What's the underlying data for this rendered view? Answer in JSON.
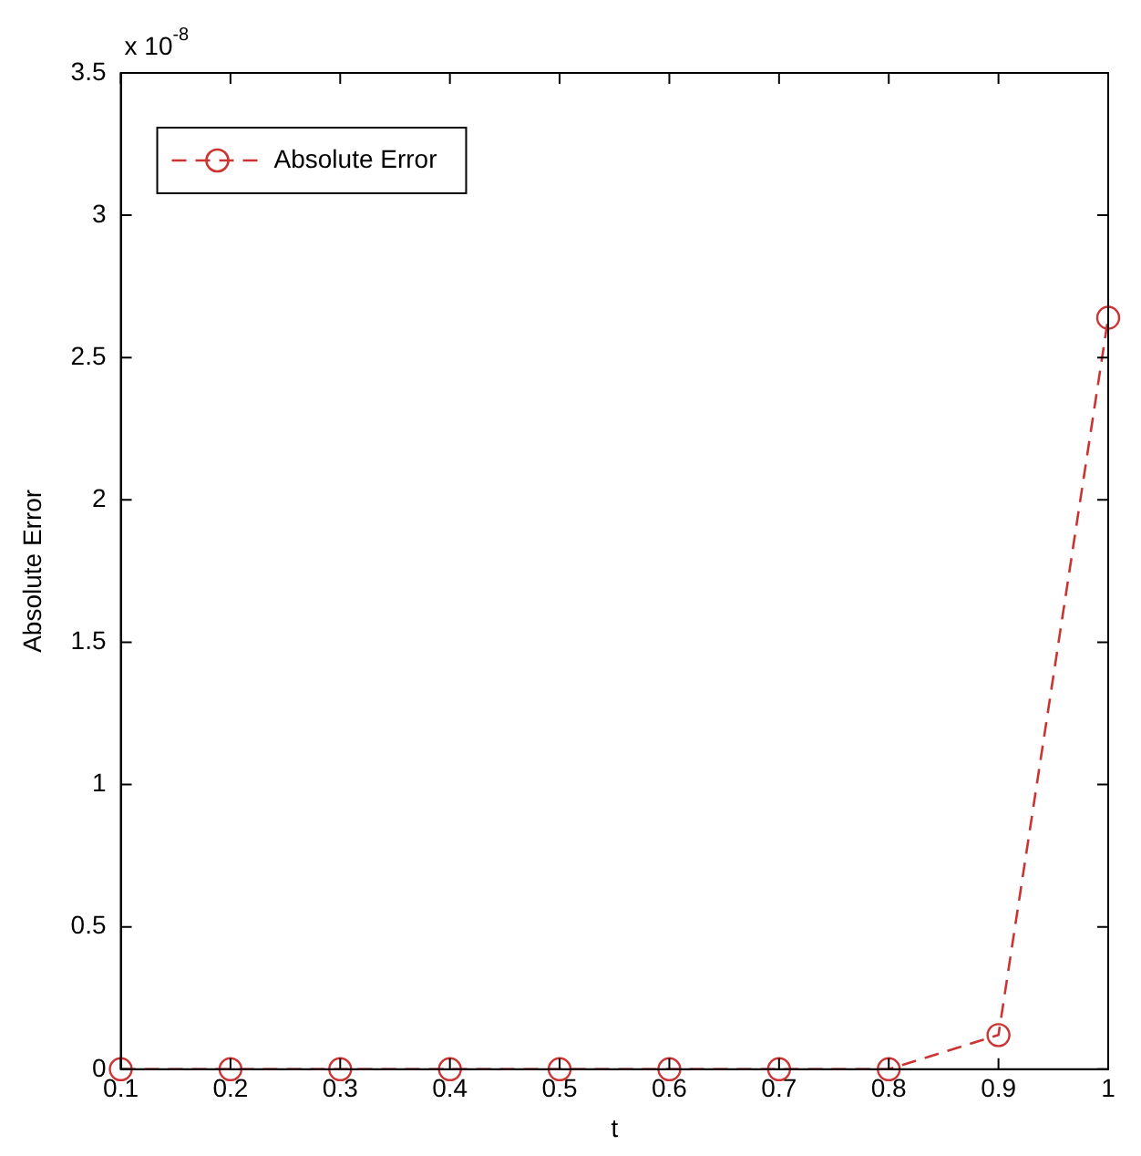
{
  "chart_data": {
    "type": "line",
    "xlabel": "t",
    "ylabel": "Absolute Error",
    "annotations": [
      "x 10$^{-8}$"
    ],
    "x": [
      0.1,
      0.2,
      0.3,
      0.4,
      0.5,
      0.6,
      0.7,
      0.8,
      0.9,
      1.0
    ],
    "series": [
      {
        "name": "Absolute Error",
        "color": "#cc3333",
        "values": [
          0,
          0,
          0,
          0,
          0,
          0,
          0,
          0,
          0.12,
          2.64
        ]
      }
    ],
    "xlim": [
      0.1,
      1
    ],
    "xticks": [
      0.1,
      0.2,
      0.3,
      0.4,
      0.5,
      0.6,
      0.7,
      0.8,
      0.9,
      1
    ],
    "ylim": [
      0,
      3.5
    ],
    "yticks": [
      0,
      0.5,
      1,
      1.5,
      2,
      2.5,
      3,
      3.5
    ],
    "grid": false,
    "legend": "top left",
    "marker": "circle",
    "line_style": "dashed"
  }
}
